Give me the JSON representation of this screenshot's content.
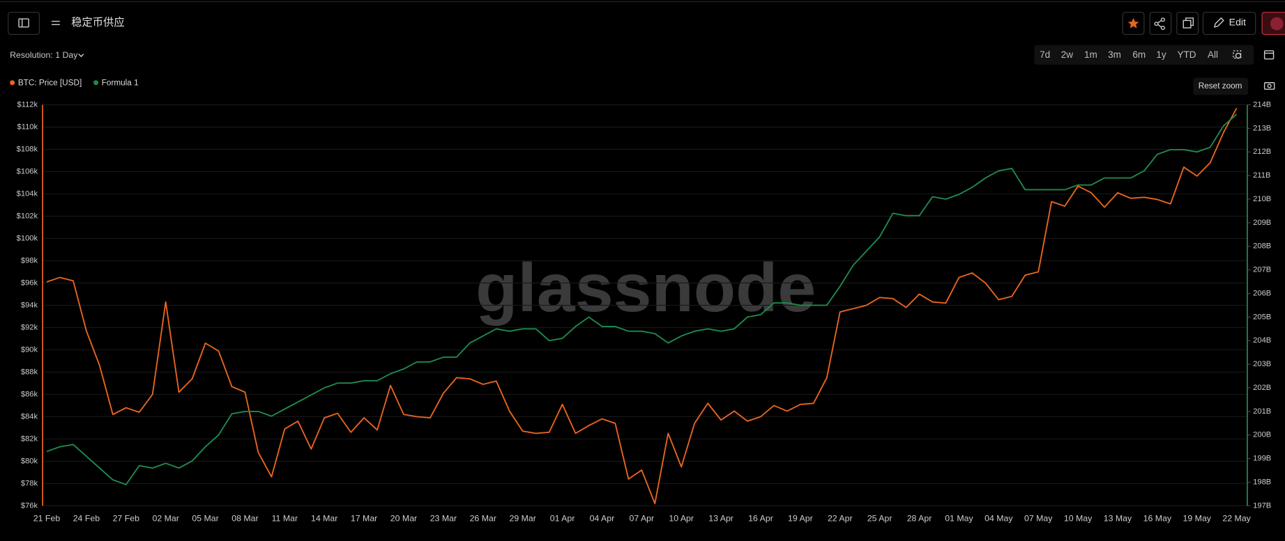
{
  "ui": {
    "title": "稳定币供应",
    "resolution": "Resolution: 1 Day",
    "ranges": [
      "7d",
      "2w",
      "1m",
      "3m",
      "6m",
      "1y",
      "YTD",
      "All"
    ],
    "edit": "Edit",
    "reset_zoom": "Reset zoom",
    "watermark": "glassnode"
  },
  "chart_data": {
    "type": "line",
    "categories": [
      "21 Feb",
      null,
      null,
      "24 Feb",
      null,
      null,
      "27 Feb",
      null,
      null,
      "02 Mar",
      null,
      null,
      "05 Mar",
      null,
      null,
      "08 Mar",
      null,
      null,
      "11 Mar",
      null,
      null,
      "14 Mar",
      null,
      null,
      "17 Mar",
      null,
      null,
      "20 Mar",
      null,
      null,
      "23 Mar",
      null,
      null,
      "26 Mar",
      null,
      null,
      "29 Mar",
      null,
      null,
      "01 Apr",
      null,
      null,
      "04 Apr",
      null,
      null,
      "07 Apr",
      null,
      null,
      "10 Apr",
      null,
      null,
      "13 Apr",
      null,
      null,
      "16 Apr",
      null,
      null,
      "19 Apr",
      null,
      null,
      "22 Apr",
      null,
      null,
      "25 Apr",
      null,
      null,
      "28 Apr",
      null,
      null,
      "01 May",
      null,
      null,
      "04 May",
      null,
      null,
      "07 May",
      null,
      null,
      "10 May",
      null,
      null,
      "13 May",
      null,
      null,
      "16 May",
      null,
      null,
      "19 May",
      null,
      null,
      "22 May"
    ],
    "series": [
      {
        "name": "BTC: Price [USD]",
        "color": "#e8651f",
        "axis": "y",
        "values": [
          96.1,
          96.5,
          96.2,
          91.7,
          88.6,
          84.2,
          84.8,
          84.4,
          86.0,
          94.3,
          86.2,
          87.4,
          90.6,
          89.9,
          86.7,
          86.2,
          80.8,
          78.6,
          82.9,
          83.6,
          81.1,
          83.9,
          84.3,
          82.6,
          83.9,
          82.8,
          86.8,
          84.2,
          84.0,
          83.9,
          86.1,
          87.5,
          87.4,
          86.9,
          87.2,
          84.5,
          82.7,
          82.5,
          82.6,
          85.1,
          82.5,
          83.2,
          83.8,
          83.4,
          78.4,
          79.2,
          76.2,
          82.5,
          79.5,
          83.4,
          85.2,
          83.7,
          84.5,
          83.6,
          84.0,
          85.0,
          84.5,
          85.1,
          85.2,
          87.5,
          93.4,
          93.7,
          94.0,
          94.7,
          94.6,
          93.8,
          95.0,
          94.3,
          94.2,
          96.5,
          96.9,
          96.0,
          94.5,
          94.8,
          96.7,
          97.0,
          103.3,
          102.9,
          104.7,
          104.1,
          102.8,
          104.1,
          103.6,
          103.7,
          103.5,
          103.1,
          106.4,
          105.6,
          106.8,
          109.5,
          111.7
        ]
      },
      {
        "name": "Formula 1",
        "color": "#1f8a4c",
        "axis": "y2",
        "values": [
          199.3,
          199.5,
          199.6,
          199.1,
          198.6,
          198.1,
          197.9,
          198.7,
          198.6,
          198.8,
          198.6,
          198.9,
          199.5,
          200.0,
          200.9,
          201.0,
          201.0,
          200.8,
          201.1,
          201.4,
          201.7,
          202.0,
          202.2,
          202.2,
          202.3,
          202.3,
          202.6,
          202.8,
          203.1,
          203.1,
          203.3,
          203.3,
          203.9,
          204.2,
          204.5,
          204.4,
          204.5,
          204.5,
          204.0,
          204.1,
          204.6,
          205.0,
          204.6,
          204.6,
          204.4,
          204.4,
          204.3,
          203.9,
          204.2,
          204.4,
          204.5,
          204.4,
          204.5,
          205.0,
          205.1,
          205.6,
          205.6,
          205.5,
          205.5,
          205.5,
          206.3,
          207.2,
          207.8,
          208.4,
          209.4,
          209.3,
          209.3,
          210.1,
          210.0,
          210.2,
          210.5,
          210.9,
          211.2,
          211.3,
          210.4,
          210.4,
          210.4,
          210.4,
          210.6,
          210.6,
          210.9,
          210.9,
          210.9,
          211.2,
          211.9,
          212.1,
          212.1,
          212.0,
          212.2,
          213.1,
          213.6
        ]
      }
    ],
    "ylim": [
      76,
      112
    ],
    "yticks": [
      {
        "value": 112,
        "label": "$112k"
      },
      {
        "value": 110,
        "label": "$110k"
      },
      {
        "value": 108,
        "label": "$108k"
      },
      {
        "value": 106,
        "label": "$106k"
      },
      {
        "value": 104,
        "label": "$104k"
      },
      {
        "value": 102,
        "label": "$102k"
      },
      {
        "value": 100,
        "label": "$100k"
      },
      {
        "value": 98,
        "label": "$98k"
      },
      {
        "value": 96,
        "label": "$96k"
      },
      {
        "value": 94,
        "label": "$94k"
      },
      {
        "value": 92,
        "label": "$92k"
      },
      {
        "value": 90,
        "label": "$90k"
      },
      {
        "value": 88,
        "label": "$88k"
      },
      {
        "value": 86,
        "label": "$86k"
      },
      {
        "value": 84,
        "label": "$84k"
      },
      {
        "value": 82,
        "label": "$82k"
      },
      {
        "value": 80,
        "label": "$80k"
      },
      {
        "value": 78,
        "label": "$78k"
      },
      {
        "value": 76,
        "label": "$76k"
      }
    ],
    "y2lim": [
      197,
      214
    ],
    "y2ticks": [
      {
        "value": 214,
        "label": "214B"
      },
      {
        "value": 213,
        "label": "213B"
      },
      {
        "value": 212,
        "label": "212B"
      },
      {
        "value": 211,
        "label": "211B"
      },
      {
        "value": 210,
        "label": "210B"
      },
      {
        "value": 209,
        "label": "209B"
      },
      {
        "value": 208,
        "label": "208B"
      },
      {
        "value": 207,
        "label": "207B"
      },
      {
        "value": 206,
        "label": "206B"
      },
      {
        "value": 205,
        "label": "205B"
      },
      {
        "value": 204,
        "label": "204B"
      },
      {
        "value": 203,
        "label": "203B"
      },
      {
        "value": 202,
        "label": "202B"
      },
      {
        "value": 201,
        "label": "201B"
      },
      {
        "value": 200,
        "label": "200B"
      },
      {
        "value": 199,
        "label": "199B"
      },
      {
        "value": 198,
        "label": "198B"
      },
      {
        "value": 197,
        "label": "197B"
      }
    ],
    "grid": true
  }
}
